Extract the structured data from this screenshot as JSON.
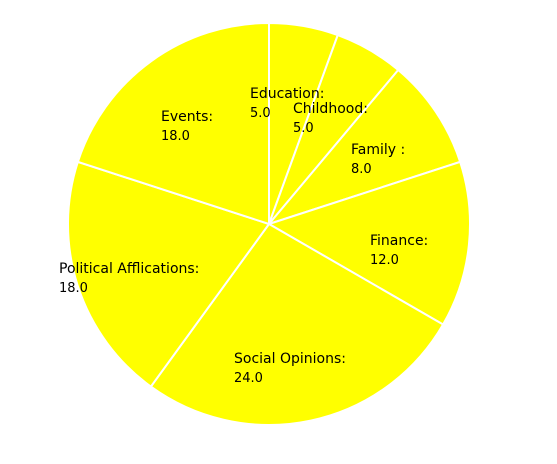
{
  "chart_data": {
    "type": "pie",
    "start_angle_deg": 90,
    "direction": "clockwise",
    "slice_color": "#ffff00",
    "edge_color": "#ffffff",
    "slices": [
      {
        "label": "Education:",
        "value": 5.0,
        "value_text": "5.0"
      },
      {
        "label": "Childhood:",
        "value": 5.0,
        "value_text": "5.0"
      },
      {
        "label": "Family :",
        "value": 8.0,
        "value_text": "8.0"
      },
      {
        "label": "Finance:",
        "value": 12.0,
        "value_text": "12.0"
      },
      {
        "label": "Social Opinions:",
        "value": 24.0,
        "value_text": "24.0"
      },
      {
        "label": "Political Afflications:",
        "value": 18.0,
        "value_text": "18.0"
      },
      {
        "label": "Events:",
        "value": 18.0,
        "value_text": "18.0"
      }
    ]
  }
}
